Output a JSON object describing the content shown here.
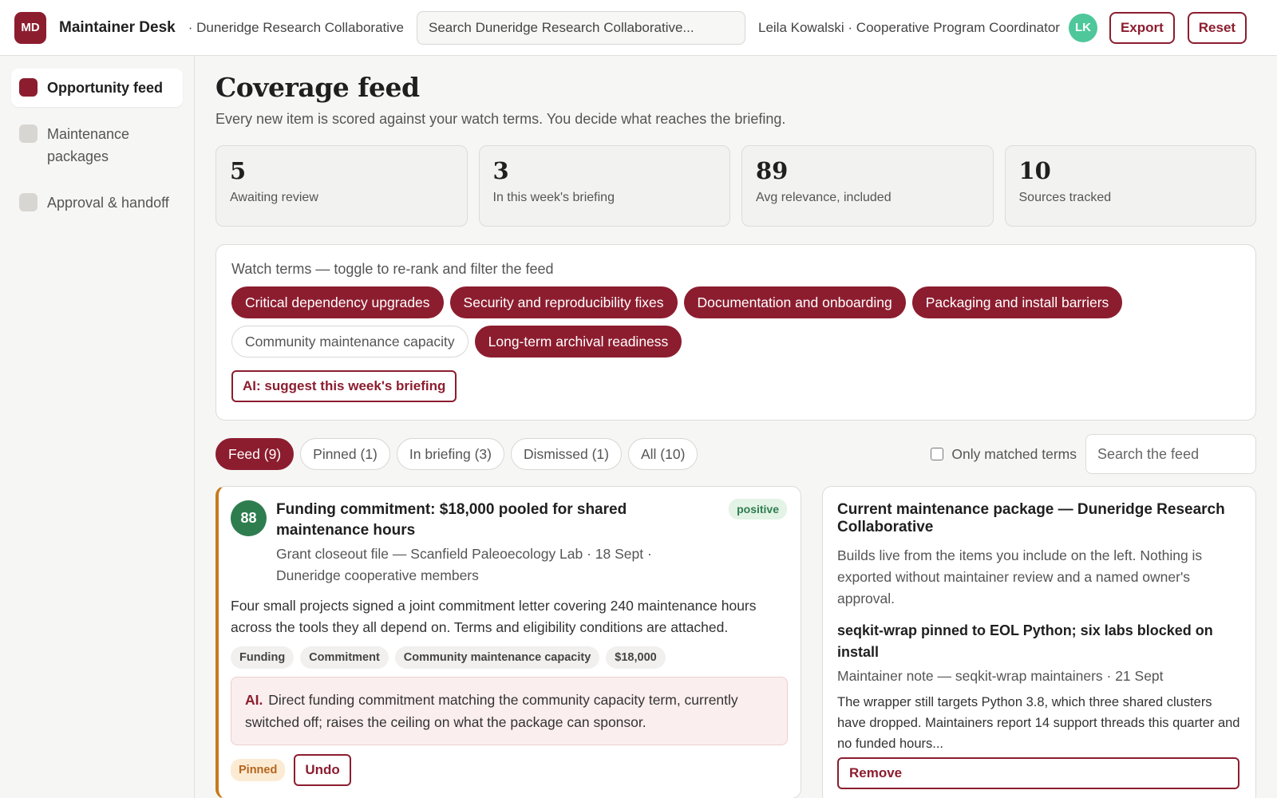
{
  "header": {
    "logo_text": "MD",
    "app_name": "Maintainer Desk",
    "org": "· Duneridge Research Collaborative",
    "search_placeholder": "Search Duneridge Research Collaborative...",
    "user": "Leila Kowalski · Cooperative Program Coordinator",
    "avatar_initials": "LK",
    "export_label": "Export",
    "reset_label": "Reset"
  },
  "sidebar": {
    "items": [
      {
        "label": "Opportunity feed",
        "active": true
      },
      {
        "label": "Maintenance packages",
        "active": false
      },
      {
        "label": "Approval & handoff",
        "active": false
      }
    ]
  },
  "main": {
    "title": "Coverage feed",
    "subtitle": "Every new item is scored against your watch terms. You decide what reaches the briefing.",
    "stats": [
      {
        "value": "5",
        "label": "Awaiting review"
      },
      {
        "value": "3",
        "label": "In this week's briefing"
      },
      {
        "value": "89",
        "label": "Avg relevance, included"
      },
      {
        "value": "10",
        "label": "Sources tracked"
      }
    ],
    "watch": {
      "title": "Watch terms — toggle to re-rank and filter the feed",
      "terms": [
        {
          "label": "Critical dependency upgrades",
          "on": true
        },
        {
          "label": "Security and reproducibility fixes",
          "on": true
        },
        {
          "label": "Documentation and onboarding",
          "on": true
        },
        {
          "label": "Packaging and install barriers",
          "on": true
        },
        {
          "label": "Community maintenance capacity",
          "on": false
        },
        {
          "label": "Long-term archival readiness",
          "on": true
        }
      ],
      "ai_button": "AI: suggest this week's briefing"
    },
    "tabs": [
      {
        "label": "Feed (9)",
        "active": true
      },
      {
        "label": "Pinned (1)",
        "active": false
      },
      {
        "label": "In briefing (3)",
        "active": false
      },
      {
        "label": "Dismissed (1)",
        "active": false
      },
      {
        "label": "All (10)",
        "active": false
      }
    ],
    "only_matched_label": "Only matched terms",
    "feed_search_placeholder": "Search the feed"
  },
  "card": {
    "score": "88",
    "title": "Funding commitment: $18,000 pooled for shared maintenance hours",
    "meta": "Grant closeout file — Scanfield Paleoecology Lab · 18 Sept · Duneridge cooperative members",
    "sentiment": "positive",
    "body": "Four small projects signed a joint commitment letter covering 240 maintenance hours across the tools they all depend on. Terms and eligibility conditions are attached.",
    "chips": [
      "Funding",
      "Commitment",
      "Community maintenance capacity",
      "$18,000"
    ],
    "ai_tag": "AI.",
    "ai_text": "Direct funding commitment matching the community capacity term, currently switched off; raises the ceiling on what the package can sponsor.",
    "status": "Pinned",
    "undo_label": "Undo"
  },
  "package": {
    "title": "Current maintenance package — Duneridge Research Collaborative",
    "description": "Builds live from the items you include on the left. Nothing is exported without maintainer review and a named owner's approval.",
    "item_title": "seqkit-wrap pinned to EOL Python; six labs blocked on install",
    "item_meta": "Maintainer note — seqkit-wrap maintainers · 21 Sept",
    "item_body": "The wrapper still targets Python 3.8, which three shared clusters have dropped. Maintainers report 14 support threads this quarter and no funded hours...",
    "remove_label": "Remove"
  },
  "colors": {
    "brand": "#8c1d2f",
    "score_green": "#2e7d4f",
    "avatar": "#4ec79b",
    "card_accent": "#c77a1a"
  }
}
